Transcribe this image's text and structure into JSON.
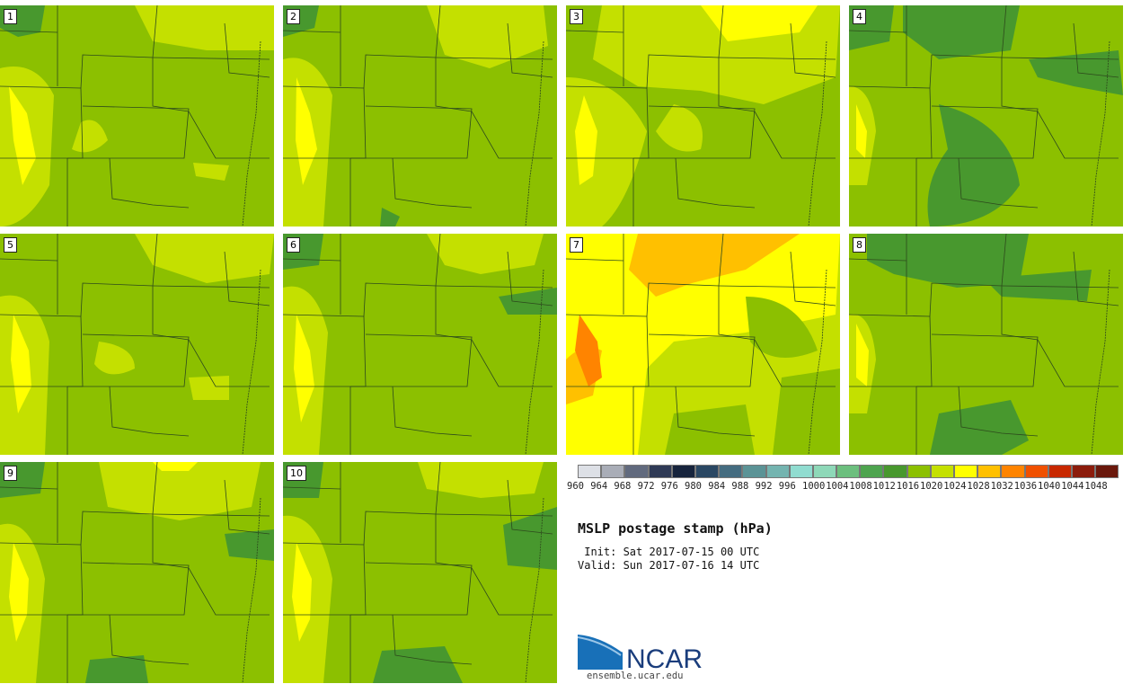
{
  "title": "MSLP postage stamp (hPa)",
  "init": " Init: Sat 2017-07-15 00 UTC",
  "valid": "Valid: Sun 2017-07-16 14 UTC",
  "site": "ensemble.ucar.edu",
  "logo_text": "NCAR",
  "colorbar": {
    "labels": [
      "960",
      "964",
      "968",
      "972",
      "976",
      "980",
      "984",
      "988",
      "992",
      "996",
      "1000",
      "1004",
      "1008",
      "1012",
      "1016",
      "1020",
      "1024",
      "1028",
      "1032",
      "1036",
      "1040",
      "1044",
      "1048"
    ],
    "colors": [
      "#dde0e6",
      "#a9adb7",
      "#616a7e",
      "#2f3a56",
      "#17243d",
      "#2a4763",
      "#446c80",
      "#5b9396",
      "#74b4b0",
      "#90dcd0",
      "#8ed8b8",
      "#6cbf7e",
      "#4ea44f",
      "#48982e",
      "#8cc000",
      "#c4e000",
      "#ffff00",
      "#ffc000",
      "#ff8400",
      "#f05000",
      "#c82800",
      "#8c1c0c",
      "#6a180c"
    ]
  },
  "members": [
    {
      "label": "1",
      "dominant": "1020"
    },
    {
      "label": "2",
      "dominant": "1020"
    },
    {
      "label": "3",
      "dominant": "1020"
    },
    {
      "label": "4",
      "dominant": "1016"
    },
    {
      "label": "5",
      "dominant": "1020"
    },
    {
      "label": "6",
      "dominant": "1020"
    },
    {
      "label": "7",
      "dominant": "1024"
    },
    {
      "label": "8",
      "dominant": "1020"
    },
    {
      "label": "9",
      "dominant": "1020"
    },
    {
      "label": "10",
      "dominant": "1020"
    }
  ]
}
